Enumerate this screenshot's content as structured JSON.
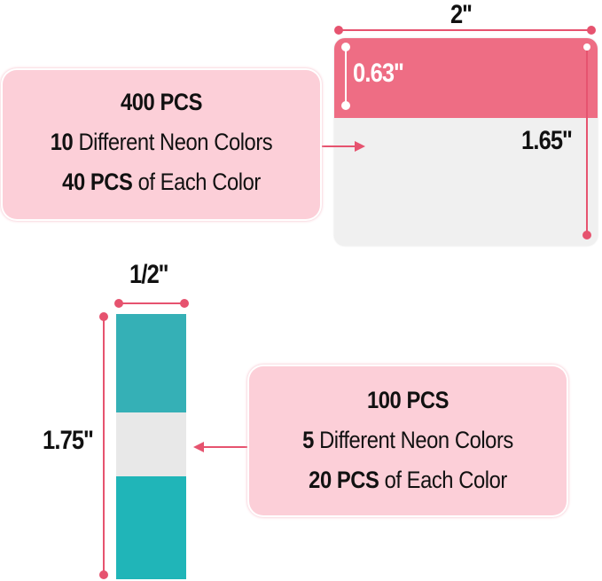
{
  "colors": {
    "accent": "#e6536f",
    "box_bg": "#fccfd8",
    "tab_pink": "#ee6d84",
    "tab_white": "#f0f0f0",
    "teal": "#2ab2b7"
  },
  "large_tab": {
    "width_label": "2''",
    "tab_height_label": "0.63''",
    "height_label": "1.65''",
    "info": {
      "title": "400 PCS",
      "line2_bold": "10",
      "line2_rest": " Different Neon Colors",
      "line3_bold": "40 PCS",
      "line3_rest": " of Each Color"
    }
  },
  "small_tab": {
    "width_label": "1/2''",
    "height_label": "1.75''",
    "info": {
      "title": "100 PCS",
      "line2_bold": "5",
      "line2_rest": " Different Neon Colors",
      "line3_bold": "20 PCS",
      "line3_rest": " of Each Color"
    }
  }
}
